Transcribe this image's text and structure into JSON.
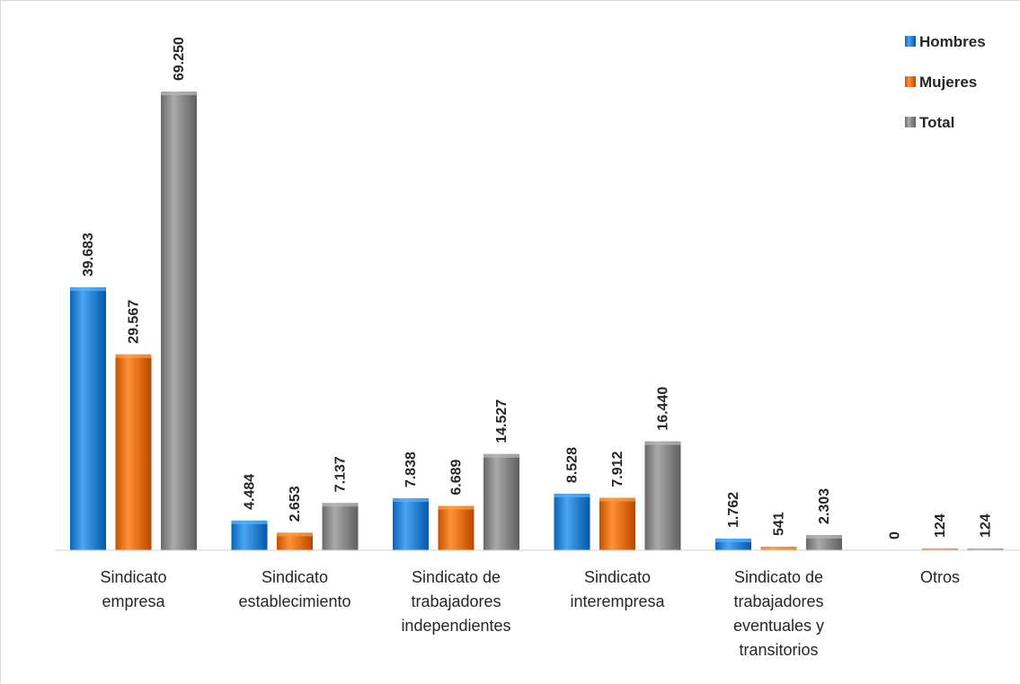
{
  "chart_data": {
    "type": "bar",
    "categories": [
      [
        "Sindicato",
        "empresa"
      ],
      [
        "Sindicato",
        "establecimiento"
      ],
      [
        "Sindicato de",
        "trabajadores",
        "independientes"
      ],
      [
        "Sindicato",
        "interempresa"
      ],
      [
        "Sindicato de",
        "trabajadores",
        "eventuales y",
        "transitorios"
      ],
      [
        "Otros"
      ]
    ],
    "series": [
      {
        "name": "Hombres",
        "color": "#2E86D6",
        "values": [
          39683,
          4484,
          7838,
          8528,
          1762,
          0
        ],
        "labels": [
          "39.683",
          "4.484",
          "7.838",
          "8.528",
          "1.762",
          "0"
        ]
      },
      {
        "name": "Mujeres",
        "color": "#E8741A",
        "values": [
          29567,
          2653,
          6689,
          7912,
          541,
          124
        ],
        "labels": [
          "29.567",
          "2.653",
          "6.689",
          "7.912",
          "541",
          "124"
        ]
      },
      {
        "name": "Total",
        "color": "#8C8C8C",
        "values": [
          69250,
          7137,
          14527,
          16440,
          2303,
          124
        ],
        "labels": [
          "69.250",
          "7.137",
          "14.527",
          "16.440",
          "2.303",
          "124"
        ]
      }
    ],
    "ylim": [
      0,
      70000
    ],
    "grid": false,
    "legend": "top-right"
  }
}
